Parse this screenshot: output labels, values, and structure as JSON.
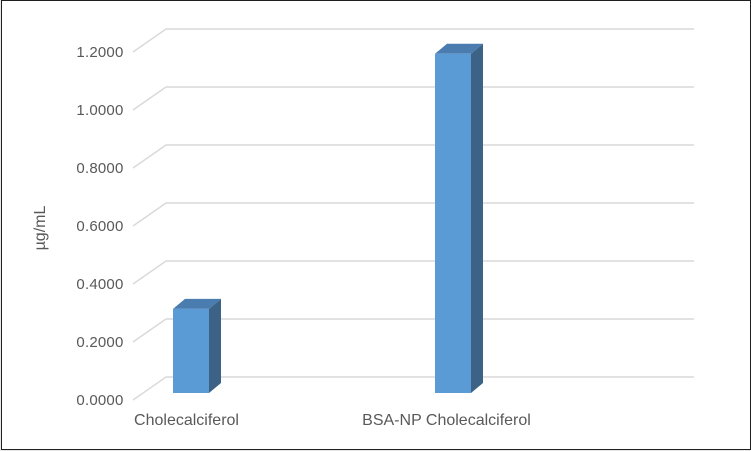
{
  "chart_data": {
    "type": "bar",
    "style": "3d-column",
    "title": "",
    "xlabel": "",
    "ylabel": "µg/mL",
    "categories": [
      "Cholecalciferol",
      "BSA-NP Cholecalciferol"
    ],
    "values": [
      0.29,
      1.17
    ],
    "series": [
      {
        "name": "µg/mL",
        "values": [
          0.29,
          1.17
        ]
      }
    ],
    "ylim": [
      0,
      1.2
    ],
    "ytick_step": 0.2,
    "ytick_labels": [
      "1.2000",
      "1.0000",
      "0.8000",
      "0.6000",
      "0.4000",
      "0.2000",
      "0.0000"
    ],
    "grid": true,
    "legend": "none",
    "colors": {
      "bar_front": "#5B9BD5",
      "bar_top": "#4B7CB0",
      "bar_side": "#3C6286",
      "gridline": "#D9D9D9",
      "text": "#595959",
      "border": "#1F1F1F",
      "background": "#FFFFFF"
    }
  }
}
